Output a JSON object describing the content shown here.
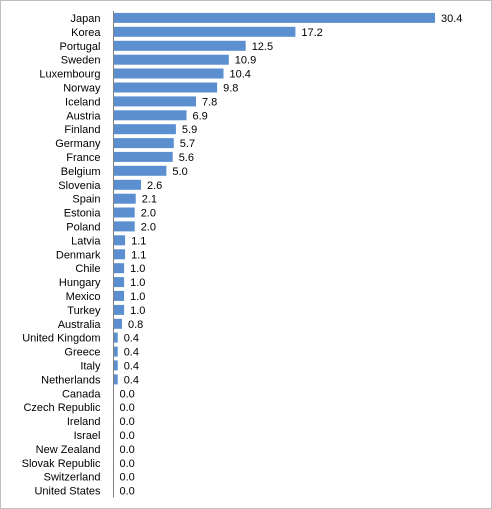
{
  "chart_data": {
    "type": "bar",
    "orientation": "horizontal",
    "title": "",
    "xlabel": "",
    "ylabel": "",
    "xlim": [
      0,
      34
    ],
    "grid": false,
    "legend": "none",
    "bar_color": "#5b8fd0",
    "categories": [
      "Japan",
      "Korea",
      "Portugal",
      "Sweden",
      "Luxembourg",
      "Norway",
      "Iceland",
      "Austria",
      "Finland",
      "Germany",
      "France",
      "Belgium",
      "Slovenia",
      "Spain",
      "Estonia",
      "Poland",
      "Latvia",
      "Denmark",
      "Chile",
      "Hungary",
      "Mexico",
      "Turkey",
      "Australia",
      "United Kingdom",
      "Greece",
      "Italy",
      "Netherlands",
      "Canada",
      "Czech Republic",
      "Ireland",
      "Israel",
      "New Zealand",
      "Slovak Republic",
      "Switzerland",
      "United States"
    ],
    "values": [
      30.4,
      17.2,
      12.5,
      10.9,
      10.4,
      9.8,
      7.8,
      6.9,
      5.9,
      5.7,
      5.6,
      5.0,
      2.6,
      2.1,
      2.0,
      2.0,
      1.1,
      1.1,
      1.0,
      1.0,
      1.0,
      1.0,
      0.8,
      0.4,
      0.4,
      0.4,
      0.4,
      0.0,
      0.0,
      0.0,
      0.0,
      0.0,
      0.0,
      0.0,
      0.0
    ],
    "value_labels": [
      "30.4",
      "17.2",
      "12.5",
      "10.9",
      "10.4",
      "9.8",
      "7.8",
      "6.9",
      "5.9",
      "5.7",
      "5.6",
      "5.0",
      "2.6",
      "2.1",
      "2.0",
      "2.0",
      "1.1",
      "1.1",
      "1.0",
      "1.0",
      "1.0",
      "1.0",
      "0.8",
      "0.4",
      "0.4",
      "0.4",
      "0.4",
      "0.0",
      "0.0",
      "0.0",
      "0.0",
      "0.0",
      "0.0",
      "0.0",
      "0.0"
    ]
  }
}
